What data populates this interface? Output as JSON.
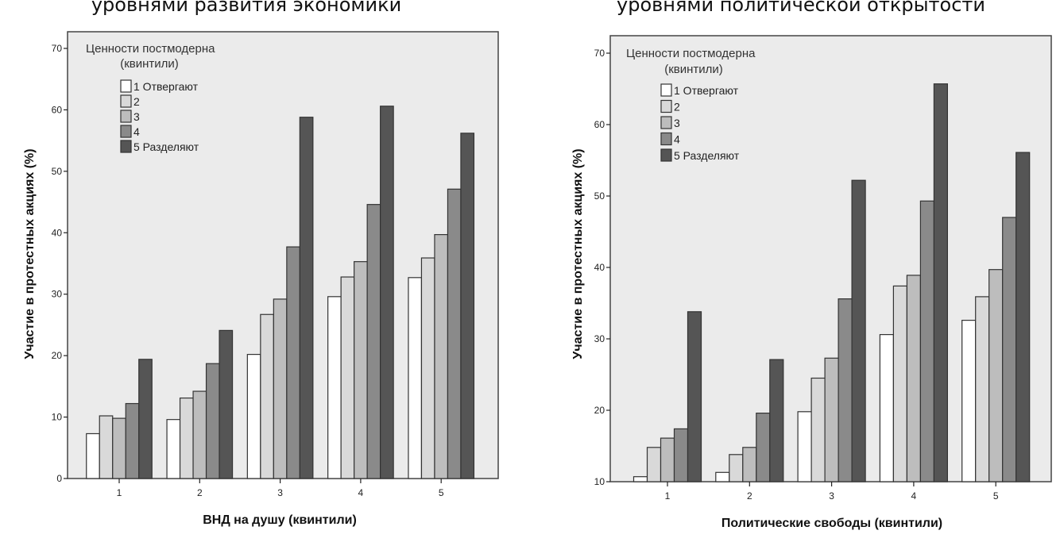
{
  "chart_data": [
    {
      "type": "bar",
      "title": "уровнями развития экономики",
      "xlabel": "ВНД на душу (квинтили)",
      "ylabel": "Участие в протестных акциях (%)",
      "ylim": [
        0,
        70
      ],
      "yticks": [
        0,
        10,
        20,
        30,
        40,
        50,
        60,
        70
      ],
      "categories": [
        "1",
        "2",
        "3",
        "4",
        "5"
      ],
      "grid": false,
      "legend": {
        "title_line1": "Ценности постмодерна",
        "title_line2": "(квинтили)",
        "placement": "top-left"
      },
      "series": [
        {
          "name": "1 Отвергают",
          "color": "#ffffff",
          "values": [
            7.3,
            9.6,
            20.2,
            29.6,
            32.7
          ]
        },
        {
          "name": "2",
          "color": "#d9d9d9",
          "values": [
            10.2,
            13.1,
            26.7,
            32.8,
            35.9
          ]
        },
        {
          "name": "3",
          "color": "#bdbdbd",
          "values": [
            9.8,
            14.2,
            29.2,
            35.3,
            39.7
          ]
        },
        {
          "name": "4",
          "color": "#8a8a8a",
          "values": [
            12.2,
            18.7,
            37.7,
            44.6,
            47.1
          ]
        },
        {
          "name": "5 Разделяют",
          "color": "#555555",
          "values": [
            19.4,
            24.1,
            58.8,
            60.6,
            56.2
          ]
        }
      ]
    },
    {
      "type": "bar",
      "title": "уровнями политической открытости",
      "xlabel": "Политические свободы (квинтили)",
      "ylabel": "Участие в протестных акциях (%)",
      "ylim": [
        10,
        70
      ],
      "yticks": [
        10,
        20,
        30,
        40,
        50,
        60,
        70
      ],
      "categories": [
        "1",
        "2",
        "3",
        "4",
        "5"
      ],
      "grid": false,
      "legend": {
        "title_line1": "Ценности постмодерна",
        "title_line2": "(квинтили)",
        "placement": "top-left"
      },
      "series": [
        {
          "name": "1 Отвергают",
          "color": "#ffffff",
          "values": [
            10.7,
            11.3,
            19.8,
            30.6,
            32.6
          ]
        },
        {
          "name": "2",
          "color": "#d9d9d9",
          "values": [
            14.8,
            13.8,
            24.5,
            37.4,
            35.9
          ]
        },
        {
          "name": "3",
          "color": "#bdbdbd",
          "values": [
            16.1,
            14.8,
            27.3,
            38.9,
            39.7
          ]
        },
        {
          "name": "4",
          "color": "#8a8a8a",
          "values": [
            17.4,
            19.6,
            35.6,
            49.3,
            47.0
          ]
        },
        {
          "name": "5 Разделяют",
          "color": "#555555",
          "values": [
            33.8,
            27.1,
            52.2,
            65.7,
            56.1
          ]
        }
      ]
    }
  ]
}
